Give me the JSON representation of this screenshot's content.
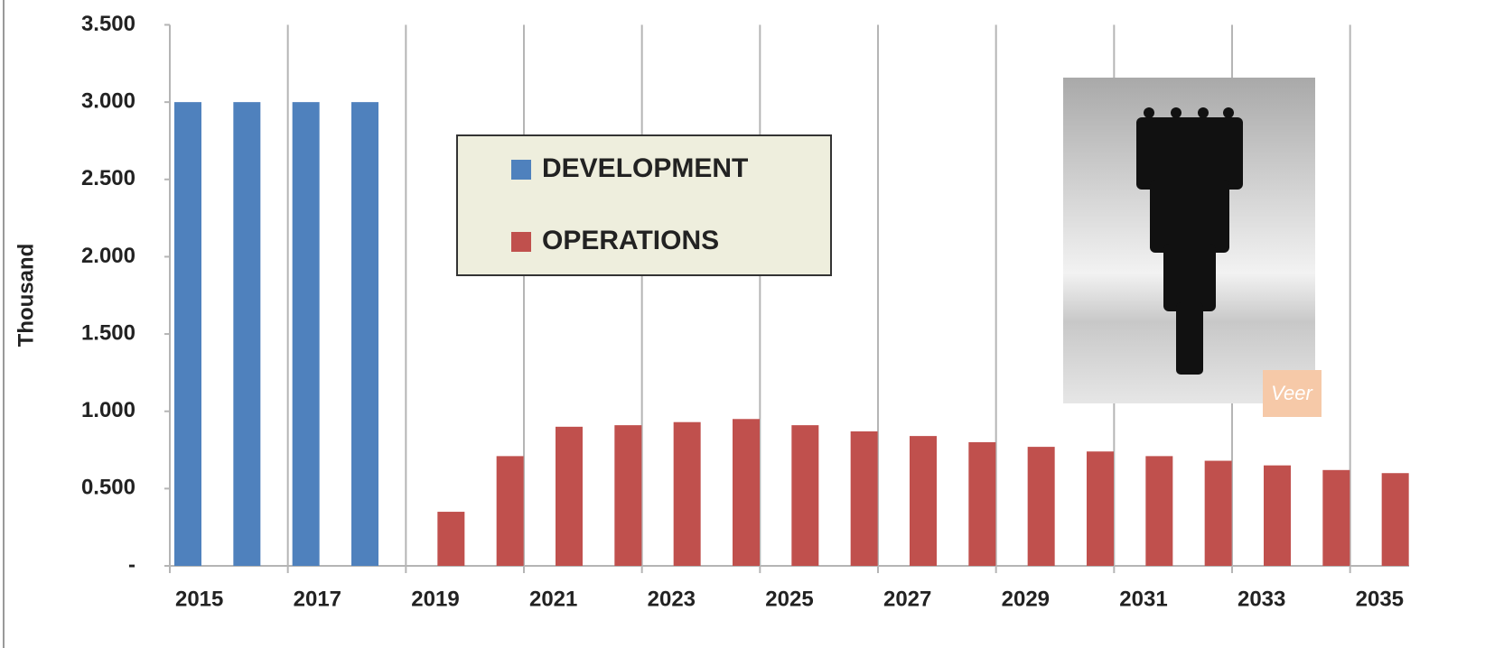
{
  "chart_data": {
    "type": "bar",
    "y_label": "Thousand",
    "categories": [
      "2015",
      null,
      "2017",
      null,
      "2019",
      null,
      "2021",
      null,
      "2023",
      null,
      "2025",
      null,
      "2027",
      null,
      "2029",
      null,
      "2031",
      null,
      "2033",
      null,
      "2035"
    ],
    "series": [
      {
        "name": "DEVELOPMENT",
        "color": "#4f81bd",
        "values": [
          3,
          3,
          3,
          3,
          null,
          null,
          null,
          null,
          null,
          null,
          null,
          null,
          null,
          null,
          null,
          null,
          null,
          null,
          null,
          null,
          null
        ]
      },
      {
        "name": "OPERATIONS",
        "color": "#c0504d",
        "values": [
          null,
          null,
          null,
          null,
          0.35,
          0.71,
          0.9,
          0.91,
          0.93,
          0.95,
          0.91,
          0.87,
          0.84,
          0.8,
          0.77,
          0.74,
          0.71,
          0.68,
          0.65,
          0.62,
          0.6
        ]
      }
    ],
    "ylim": [
      0,
      3.5
    ],
    "yticks": [
      {
        "value": 0,
        "label": "-"
      },
      {
        "value": 0.5,
        "label": "0.500"
      },
      {
        "value": 1,
        "label": "1.000"
      },
      {
        "value": 1.5,
        "label": "1.500"
      },
      {
        "value": 2,
        "label": "2.000"
      },
      {
        "value": 2.5,
        "label": "2.500"
      },
      {
        "value": 3,
        "label": "3.000"
      },
      {
        "value": 3.5,
        "label": "3.500"
      }
    ],
    "annotations": [
      "Veer"
    ]
  }
}
